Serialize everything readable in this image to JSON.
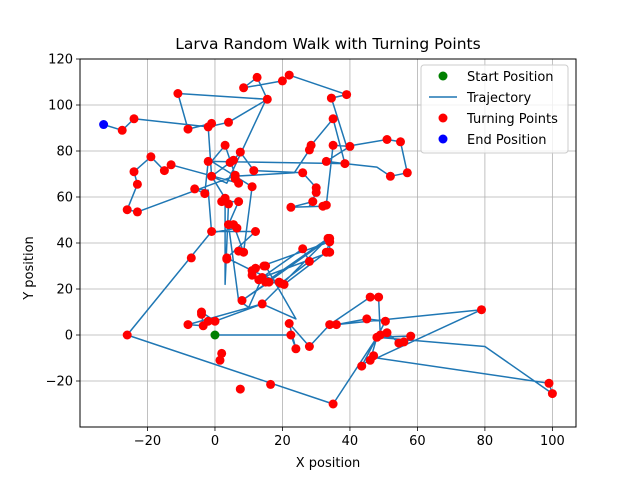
{
  "chart_data": {
    "type": "scatter",
    "title": "Larva Random Walk with Turning Points",
    "xlabel": "X position",
    "ylabel": "Y position",
    "xlim": [
      -40,
      107
    ],
    "ylim": [
      -40,
      120
    ],
    "xticks": [
      -20,
      0,
      20,
      40,
      60,
      80,
      100
    ],
    "yticks": [
      -20,
      0,
      20,
      40,
      60,
      80,
      100,
      120
    ],
    "grid": true,
    "legend_position": "upper-right",
    "legend": [
      {
        "label": "Start Position",
        "kind": "marker",
        "color": "#008000"
      },
      {
        "label": "Trajectory",
        "kind": "line",
        "color": "#1f77b4"
      },
      {
        "label": "Turning Points",
        "kind": "marker",
        "color": "#ff0000"
      },
      {
        "label": "End Position",
        "kind": "marker",
        "color": "#0000ff"
      }
    ],
    "start": {
      "name": "Start Position",
      "x": 0,
      "y": 0,
      "color": "#008000"
    },
    "end": {
      "name": "End Position",
      "x": -33,
      "y": 91.5,
      "color": "#0000ff"
    },
    "trajectory": {
      "name": "Trajectory",
      "color": "#1f77b4",
      "points": [
        [
          0,
          0
        ],
        [
          22.5,
          0
        ],
        [
          24,
          -6
        ],
        [
          22,
          5
        ],
        [
          28,
          -5
        ],
        [
          34,
          4.5
        ],
        [
          46,
          16.5
        ],
        [
          48.5,
          16.5
        ],
        [
          49,
          0
        ],
        [
          51,
          1
        ],
        [
          54.5,
          -3.5
        ],
        [
          56,
          -3
        ],
        [
          58,
          -0.5
        ],
        [
          48,
          -1
        ],
        [
          46,
          -11
        ],
        [
          47,
          -9
        ],
        [
          43.5,
          -13.5
        ],
        [
          50.5,
          6
        ],
        [
          45,
          7
        ],
        [
          36,
          4.5
        ],
        [
          79,
          11
        ],
        [
          48,
          -10
        ],
        [
          99,
          -21
        ],
        [
          100,
          -25.5
        ],
        [
          80,
          -5
        ],
        [
          48,
          -1
        ],
        [
          35,
          -30
        ],
        [
          -26,
          0
        ],
        [
          -1,
          45
        ],
        [
          12,
          45
        ],
        [
          3.5,
          33.5
        ],
        [
          11,
          28
        ],
        [
          20.5,
          22
        ],
        [
          33,
          36
        ],
        [
          34,
          40.5
        ],
        [
          12,
          29
        ],
        [
          15,
          30
        ],
        [
          24,
          7
        ],
        [
          14,
          13.5
        ],
        [
          0,
          6
        ],
        [
          -4,
          10
        ],
        [
          -3.5,
          4
        ],
        [
          -8,
          4.5
        ],
        [
          14,
          13.5
        ],
        [
          33.5,
          42
        ],
        [
          15,
          23
        ],
        [
          19.5,
          22.5
        ],
        [
          28,
          32
        ],
        [
          26,
          37.5
        ],
        [
          13,
          24
        ],
        [
          16,
          23
        ],
        [
          8,
          15
        ],
        [
          34,
          42
        ],
        [
          34,
          36
        ],
        [
          14,
          25
        ],
        [
          10,
          12
        ],
        [
          7,
          15
        ],
        [
          4,
          48
        ],
        [
          7,
          58
        ],
        [
          2,
          58
        ],
        [
          4,
          57
        ],
        [
          3,
          22
        ],
        [
          3,
          59.5
        ],
        [
          -1,
          69
        ],
        [
          4.5,
          75
        ],
        [
          5.5,
          76
        ],
        [
          7.5,
          79.5
        ],
        [
          11.5,
          71.5
        ],
        [
          26,
          70.5
        ],
        [
          30,
          64
        ],
        [
          30,
          62
        ],
        [
          28,
          56
        ],
        [
          29,
          58
        ],
        [
          22.5,
          55.5
        ],
        [
          32,
          56
        ],
        [
          33,
          56.5
        ],
        [
          35,
          82.5
        ],
        [
          40,
          82
        ],
        [
          33,
          75.5
        ],
        [
          38.5,
          74.5
        ],
        [
          -2,
          75.5
        ],
        [
          -3,
          61.5
        ],
        [
          -6,
          63.5
        ],
        [
          -2,
          63
        ],
        [
          -1,
          44.5
        ],
        [
          6.5,
          46.5
        ],
        [
          5.5,
          48
        ],
        [
          8.5,
          36
        ],
        [
          11,
          64.5
        ],
        [
          -1,
          75.5
        ],
        [
          3,
          82.5
        ],
        [
          6,
          69.5
        ],
        [
          6,
          68
        ],
        [
          7,
          66
        ],
        [
          -13,
          74
        ],
        [
          -15,
          71.5
        ],
        [
          -19,
          77.5
        ],
        [
          -24,
          71
        ],
        [
          -23,
          65.5
        ],
        [
          -26,
          54.5
        ],
        [
          -23,
          53.5
        ],
        [
          5.5,
          69
        ],
        [
          23.5,
          70.5
        ],
        [
          28,
          80.5
        ],
        [
          28.5,
          82.5
        ],
        [
          35,
          94
        ],
        [
          38.5,
          74.5
        ],
        [
          48,
          73
        ],
        [
          52,
          69
        ],
        [
          57,
          70.5
        ],
        [
          55,
          84
        ],
        [
          51,
          85
        ],
        [
          39,
          82
        ],
        [
          34.5,
          103
        ],
        [
          39,
          104.5
        ],
        [
          22,
          113
        ],
        [
          20,
          110.5
        ],
        [
          8.5,
          107.5
        ],
        [
          12.5,
          112
        ],
        [
          15.5,
          102.5
        ],
        [
          -11,
          105
        ],
        [
          -8,
          89.5
        ],
        [
          -1,
          92
        ],
        [
          -2,
          90.5
        ],
        [
          4,
          92.5
        ],
        [
          15,
          102
        ],
        [
          3.5,
          66
        ],
        [
          -1,
          69
        ],
        [
          -2,
          90.5
        ],
        [
          -24,
          94
        ],
        [
          -27.5,
          89
        ],
        [
          -33,
          91.5
        ]
      ]
    },
    "turning_points": {
      "name": "Turning Points",
      "color": "#ff0000",
      "points": [
        [
          22.5,
          0
        ],
        [
          24,
          -6
        ],
        [
          22,
          5
        ],
        [
          28,
          -5
        ],
        [
          34,
          4.5
        ],
        [
          46,
          16.5
        ],
        [
          48.5,
          16.5
        ],
        [
          49,
          0
        ],
        [
          51,
          1
        ],
        [
          54.5,
          -3.5
        ],
        [
          56,
          -3
        ],
        [
          58,
          -0.5
        ],
        [
          48,
          -1
        ],
        [
          46,
          -11
        ],
        [
          47,
          -9
        ],
        [
          43.5,
          -13.5
        ],
        [
          50.5,
          6
        ],
        [
          45,
          7
        ],
        [
          36,
          4.5
        ],
        [
          79,
          11
        ],
        [
          99,
          -21
        ],
        [
          100,
          -25.5
        ],
        [
          35,
          -30
        ],
        [
          -26,
          0
        ],
        [
          -1,
          45
        ],
        [
          12,
          45
        ],
        [
          3.5,
          33.5
        ],
        [
          11,
          28
        ],
        [
          20.5,
          22
        ],
        [
          33,
          36
        ],
        [
          34,
          40.5
        ],
        [
          12,
          29
        ],
        [
          15,
          30
        ],
        [
          14,
          13.5
        ],
        [
          0,
          6
        ],
        [
          -4,
          10
        ],
        [
          -3.5,
          4
        ],
        [
          -8,
          4.5
        ],
        [
          33.5,
          42
        ],
        [
          15,
          23
        ],
        [
          19.5,
          22.5
        ],
        [
          28,
          32
        ],
        [
          26,
          37.5
        ],
        [
          13,
          24
        ],
        [
          16,
          23
        ],
        [
          8,
          15
        ],
        [
          34,
          42
        ],
        [
          34,
          36
        ],
        [
          14,
          25
        ],
        [
          4,
          48
        ],
        [
          7,
          58
        ],
        [
          2,
          58
        ],
        [
          4,
          57
        ],
        [
          3,
          59.5
        ],
        [
          -1,
          69
        ],
        [
          4.5,
          75
        ],
        [
          5.5,
          76
        ],
        [
          7.5,
          79.5
        ],
        [
          11.5,
          71.5
        ],
        [
          26,
          70.5
        ],
        [
          30,
          64
        ],
        [
          30,
          62
        ],
        [
          29,
          58
        ],
        [
          22.5,
          55.5
        ],
        [
          32,
          56
        ],
        [
          33,
          56.5
        ],
        [
          35,
          82.5
        ],
        [
          40,
          82
        ],
        [
          33,
          75.5
        ],
        [
          38.5,
          74.5
        ],
        [
          -2,
          75.5
        ],
        [
          -3,
          61.5
        ],
        [
          -6,
          63.5
        ],
        [
          6.5,
          46.5
        ],
        [
          5.5,
          48
        ],
        [
          8.5,
          36
        ],
        [
          11,
          64.5
        ],
        [
          3,
          82.5
        ],
        [
          6,
          69.5
        ],
        [
          6,
          68
        ],
        [
          7,
          66
        ],
        [
          -13,
          74
        ],
        [
          -15,
          71.5
        ],
        [
          -19,
          77.5
        ],
        [
          -24,
          71
        ],
        [
          -23,
          65.5
        ],
        [
          -26,
          54.5
        ],
        [
          -23,
          53.5
        ],
        [
          28,
          80.5
        ],
        [
          28.5,
          82.5
        ],
        [
          35,
          94
        ],
        [
          52,
          69
        ],
        [
          57,
          70.5
        ],
        [
          55,
          84
        ],
        [
          51,
          85
        ],
        [
          34.5,
          103
        ],
        [
          39,
          104.5
        ],
        [
          22,
          113
        ],
        [
          20,
          110.5
        ],
        [
          8.5,
          107.5
        ],
        [
          12.5,
          112
        ],
        [
          15.5,
          102.5
        ],
        [
          -11,
          105
        ],
        [
          -8,
          89.5
        ],
        [
          -1,
          92
        ],
        [
          -2,
          90.5
        ],
        [
          4,
          92.5
        ],
        [
          -24,
          94
        ],
        [
          -27.5,
          89
        ],
        [
          2,
          -8
        ],
        [
          1.5,
          -11
        ],
        [
          7.5,
          -23.5
        ],
        [
          16.5,
          -21.5
        ],
        [
          -2,
          6
        ],
        [
          -4,
          9
        ],
        [
          11,
          26
        ],
        [
          3.5,
          33
        ],
        [
          14.5,
          30
        ],
        [
          -7,
          33.5
        ],
        [
          19,
          23
        ],
        [
          7,
          36.5
        ]
      ]
    }
  }
}
